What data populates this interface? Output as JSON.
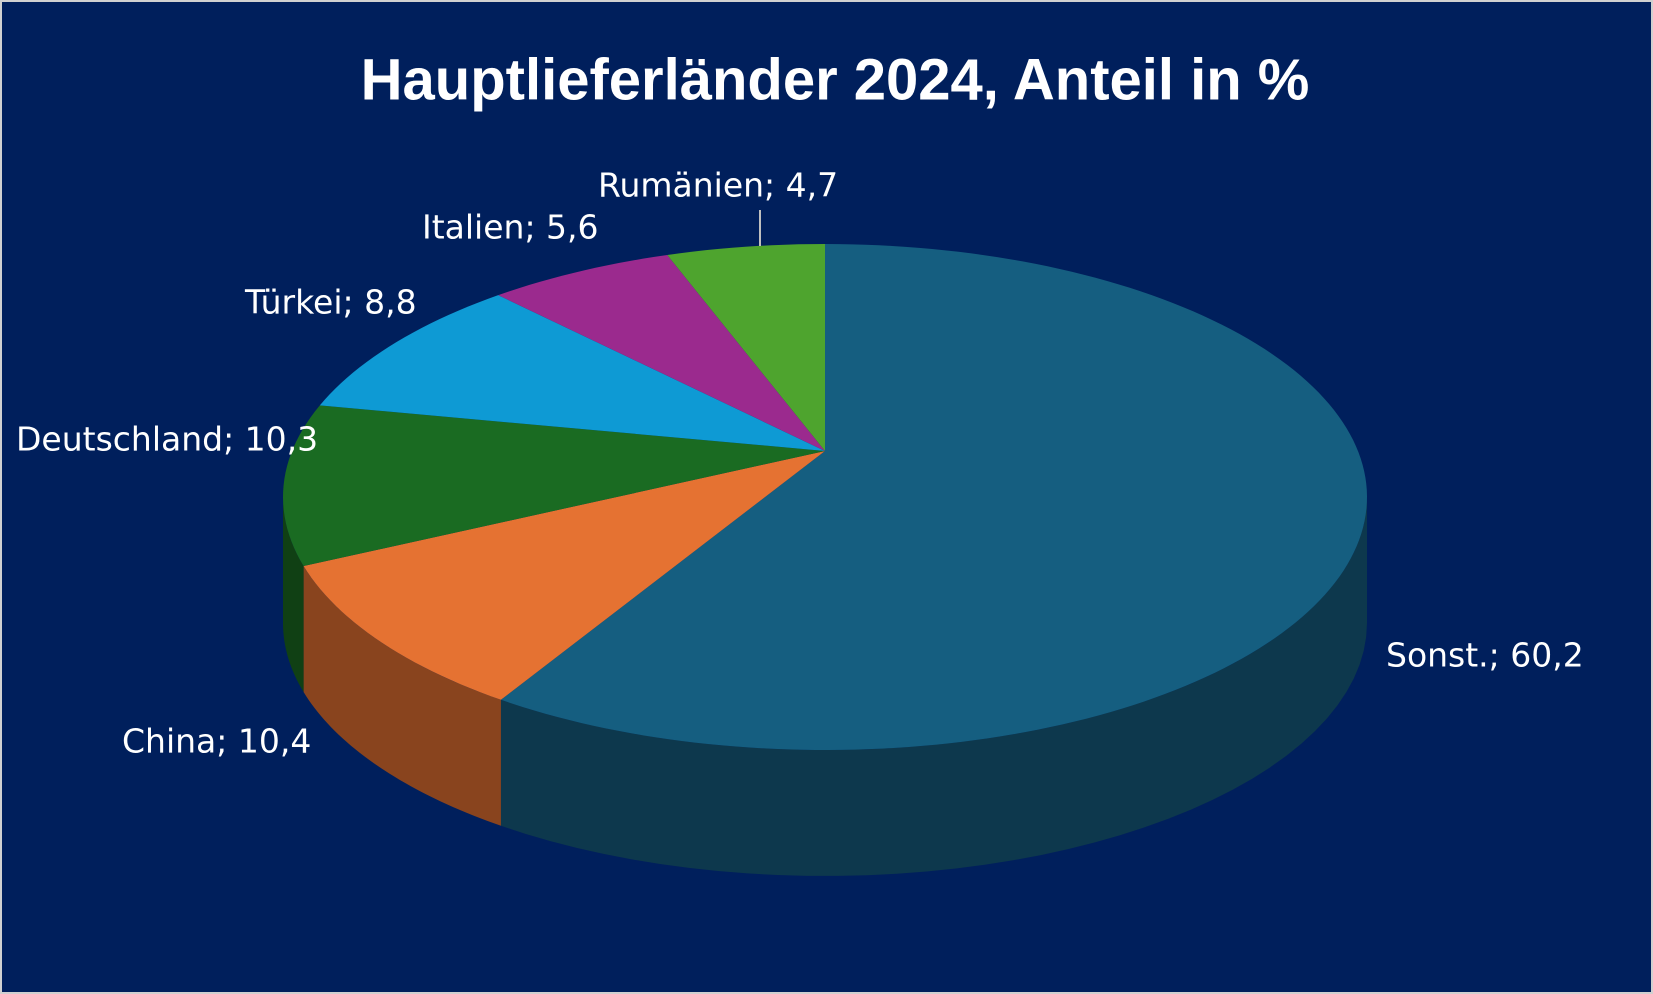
{
  "chart_data": {
    "type": "pie",
    "title": "Hauptlieferländer 2024, Anteil in %",
    "values": [
      60.2,
      10.4,
      10.3,
      8.8,
      5.6,
      4.7
    ],
    "value_labels": [
      "Sonst.; 60,2",
      "China; 10,4",
      "Deutschland; 10,3",
      "Türkei; 8,8",
      "Italien; 5,6",
      "Rumänien; 4,7"
    ],
    "colors": [
      "#155e80",
      "#e57232",
      "#1a6b22",
      "#0e9ad4",
      "#9b2a8e",
      "#4ea42e"
    ]
  }
}
